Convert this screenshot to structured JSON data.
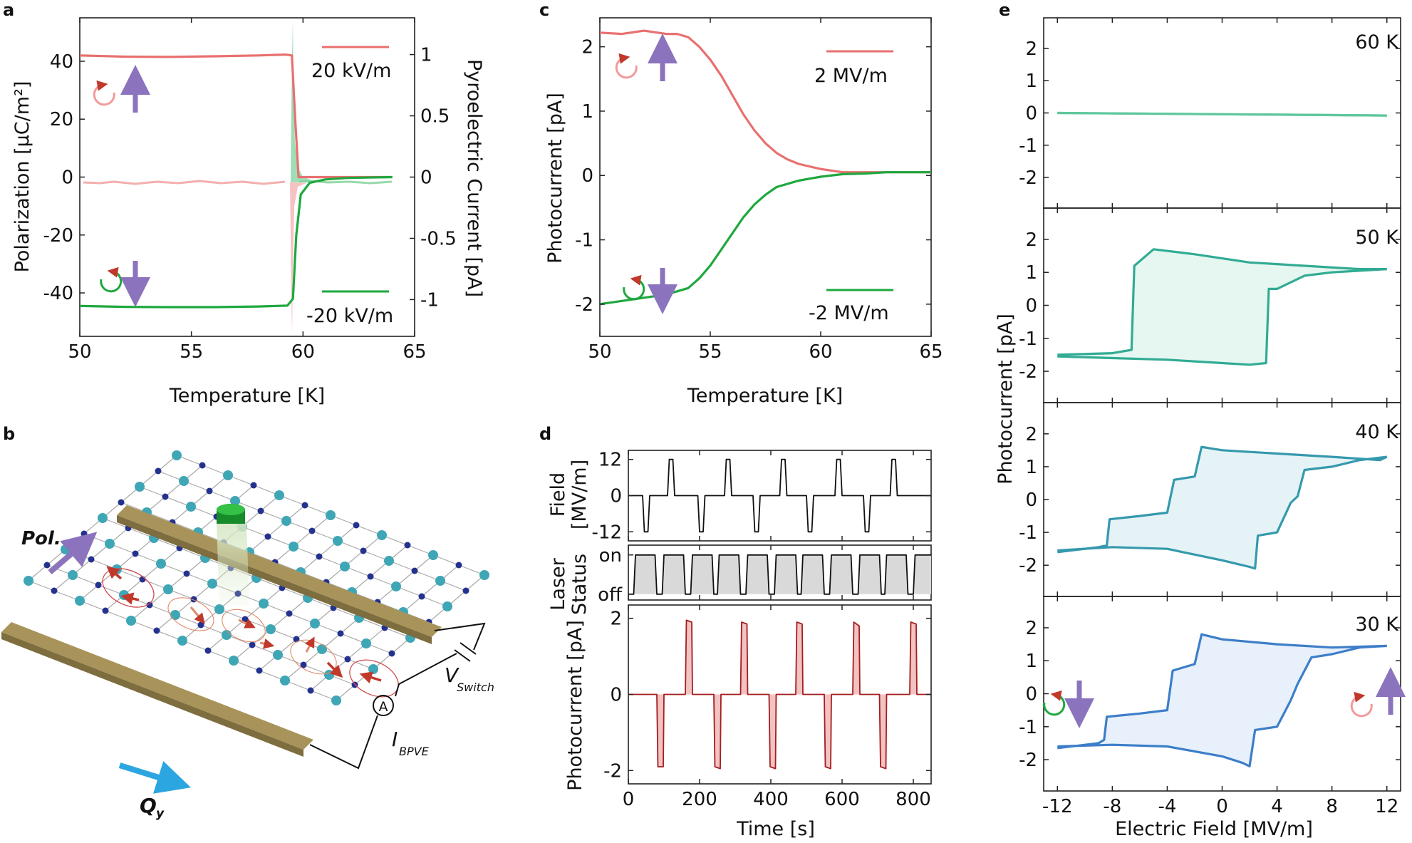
{
  "figure": {
    "panel_labels": [
      "a",
      "b",
      "c",
      "d",
      "e"
    ]
  },
  "chart_data": [
    {
      "id": "a",
      "type": "line",
      "xlabel": "Temperature [K]",
      "ylabel": "Polarization [µC/m²]",
      "ylabel_right": "Pyroelectric Current [pA]",
      "xlim": [
        50,
        65
      ],
      "ylim": [
        -55,
        55
      ],
      "ylim_right": [
        -1.3,
        1.3
      ],
      "xticks": [
        50,
        55,
        60,
        65
      ],
      "yticks": [
        -40,
        -20,
        0,
        20,
        40
      ],
      "yticks_right": [
        -1,
        -0.5,
        0,
        0.5,
        1
      ],
      "transition_temperature": 59.7,
      "series": [
        {
          "name": "20 kV/m",
          "color": "#e8706f",
          "x": [
            50,
            52,
            54,
            56,
            58,
            59.2,
            59.5,
            59.65,
            59.8,
            60.2,
            61,
            63,
            64
          ],
          "y": [
            42,
            41.6,
            41.5,
            41.7,
            42,
            42.3,
            42,
            20,
            0,
            0,
            0,
            0,
            0
          ]
        },
        {
          "name": "-20 kV/m",
          "color": "#1ea83f",
          "x": [
            50,
            52,
            54,
            56,
            58,
            59.3,
            59.55,
            59.7,
            59.9,
            60.3,
            61,
            62,
            64
          ],
          "y": [
            -44.5,
            -44.8,
            -44.9,
            -44.9,
            -44.7,
            -44.4,
            -42,
            -20,
            -6,
            -2,
            -0.8,
            -0.3,
            0
          ]
        }
      ],
      "legend": [
        "20 kV/m",
        "-20 kV/m"
      ]
    },
    {
      "id": "c",
      "type": "line",
      "xlabel": "Temperature [K]",
      "ylabel": "Photocurrent [pA]",
      "xlim": [
        50,
        65
      ],
      "ylim": [
        -2.5,
        2.45
      ],
      "xticks": [
        50,
        55,
        60,
        65
      ],
      "yticks": [
        -2,
        -1,
        0,
        1,
        2
      ],
      "series": [
        {
          "name": "2 MV/m",
          "color": "#e8706f",
          "x": [
            50,
            51,
            52,
            53,
            53.5,
            54,
            54.5,
            55,
            55.5,
            56,
            56.5,
            57,
            57.5,
            58,
            58.5,
            59,
            60,
            61,
            62,
            63,
            64,
            65
          ],
          "y": [
            2.22,
            2.2,
            2.25,
            2.2,
            2.2,
            2.15,
            2.0,
            1.8,
            1.55,
            1.25,
            0.95,
            0.7,
            0.5,
            0.35,
            0.25,
            0.18,
            0.1,
            0.05,
            0.05,
            0.05,
            0.05,
            0.05
          ]
        },
        {
          "name": "-2 MV/m",
          "color": "#1ea83f",
          "x": [
            50,
            51,
            52,
            53,
            54,
            54.5,
            55,
            55.5,
            56,
            56.5,
            57,
            57.5,
            58,
            59,
            60,
            61,
            62,
            63,
            64,
            65
          ],
          "y": [
            -2.0,
            -1.95,
            -1.9,
            -1.85,
            -1.75,
            -1.6,
            -1.4,
            -1.15,
            -0.9,
            -0.65,
            -0.45,
            -0.3,
            -0.18,
            -0.08,
            -0.02,
            0.02,
            0.03,
            0.05,
            0.05,
            0.05
          ]
        }
      ],
      "legend": [
        "2 MV/m",
        "-2 MV/m"
      ]
    },
    {
      "id": "d",
      "type": "line",
      "xlabel": "Time [s]",
      "xlim": [
        0,
        850
      ],
      "xticks": [
        0,
        200,
        400,
        600,
        800
      ],
      "subplots": [
        {
          "ylabel_lines": [
            "Field",
            "[MV/m]"
          ],
          "ylim": [
            -15,
            15
          ],
          "yticks": [
            -12,
            0,
            12
          ],
          "color": "#111111",
          "x": [
            0,
            40,
            45,
            55,
            60,
            110,
            115,
            125,
            130,
            195,
            200,
            210,
            215,
            270,
            275,
            285,
            290,
            350,
            355,
            365,
            370,
            425,
            430,
            440,
            445,
            500,
            505,
            515,
            520,
            580,
            585,
            595,
            600,
            660,
            665,
            675,
            680,
            735,
            740,
            750,
            755,
            850
          ],
          "y": [
            0,
            0,
            -12,
            -12,
            0,
            0,
            12,
            12,
            0,
            0,
            -12,
            -12,
            0,
            0,
            12,
            12,
            0,
            0,
            -12,
            -12,
            0,
            0,
            12,
            12,
            0,
            0,
            -12,
            -12,
            0,
            0,
            12,
            12,
            0,
            0,
            -12,
            -12,
            0,
            0,
            12,
            12,
            0,
            0
          ]
        },
        {
          "ylabel_lines": [
            "Laser",
            "Status"
          ],
          "ylim": [
            -0.15,
            1.25
          ],
          "ytick_labels": [
            "off",
            "on"
          ],
          "color": "#111111",
          "x": [
            0,
            15,
            20,
            75,
            80,
            95,
            100,
            155,
            160,
            175,
            180,
            235,
            240,
            250,
            255,
            310,
            315,
            330,
            335,
            390,
            395,
            410,
            415,
            470,
            475,
            485,
            490,
            545,
            550,
            565,
            570,
            625,
            630,
            645,
            650,
            705,
            710,
            720,
            725,
            780,
            785,
            800,
            805,
            850
          ],
          "y": [
            0,
            0,
            1,
            1,
            0,
            0,
            1,
            1,
            0,
            0,
            1,
            1,
            0,
            0,
            1,
            1,
            0,
            0,
            1,
            1,
            0,
            0,
            1,
            1,
            0,
            0,
            1,
            1,
            0,
            0,
            1,
            1,
            0,
            0,
            1,
            1,
            0,
            0,
            1,
            1,
            0,
            0,
            1,
            1
          ]
        },
        {
          "ylabel": "Photocurrent [pA]",
          "ylim": [
            -2.35,
            2.35
          ],
          "yticks": [
            -2,
            0,
            2
          ],
          "color": "#a51d1d",
          "x": [
            0,
            80,
            83,
            98,
            100,
            160,
            163,
            178,
            180,
            240,
            243,
            258,
            260,
            315,
            318,
            333,
            335,
            395,
            398,
            413,
            415,
            470,
            473,
            488,
            490,
            550,
            553,
            568,
            570,
            630,
            633,
            648,
            650,
            705,
            708,
            723,
            725,
            790,
            793,
            808,
            810,
            850
          ],
          "y": [
            0,
            0,
            -1.9,
            -1.9,
            0,
            0,
            1.95,
            1.9,
            0,
            0,
            -1.9,
            -1.95,
            0,
            0,
            1.9,
            1.85,
            0,
            0,
            -1.9,
            -1.95,
            0,
            0,
            1.9,
            1.85,
            0,
            0,
            -1.9,
            -1.95,
            0,
            0,
            1.9,
            1.8,
            0,
            0,
            -1.9,
            -1.95,
            0,
            0,
            1.9,
            1.85,
            0,
            0
          ]
        }
      ]
    },
    {
      "id": "e",
      "type": "line",
      "xlabel": "Electric Field [MV/m]",
      "ylabel": "Photocurrent [pA]",
      "xlim": [
        -13,
        13
      ],
      "ylim": [
        -2.95,
        2.95
      ],
      "xticks": [
        -12,
        -8,
        -4,
        0,
        4,
        8,
        12
      ],
      "yticks": [
        -2,
        -1,
        0,
        1,
        2
      ],
      "subplots": [
        {
          "label": "60 K",
          "color": "#5fc79c",
          "upper": {
            "x": [
              -12,
              12
            ],
            "y": [
              0,
              -0.08
            ]
          },
          "lower": {
            "x": [
              -12,
              12
            ],
            "y": [
              0,
              -0.08
            ]
          }
        },
        {
          "label": "50 K",
          "color": "#32ab94",
          "upper": {
            "x": [
              -12,
              -8,
              -6.6,
              -6.4,
              -5,
              -2,
              2,
              6,
              10,
              12
            ],
            "y": [
              -1.5,
              -1.45,
              -1.35,
              1.2,
              1.7,
              1.55,
              1.3,
              1.2,
              1.1,
              1.1
            ]
          },
          "lower": {
            "x": [
              -12,
              -8,
              -4,
              0,
              2,
              3.2,
              3.4,
              4,
              6,
              8,
              10,
              12
            ],
            "y": [
              -1.55,
              -1.6,
              -1.65,
              -1.75,
              -1.8,
              -1.75,
              0.5,
              0.5,
              0.9,
              1.0,
              1.05,
              1.1
            ]
          }
        },
        {
          "label": "40 K",
          "color": "#3599ad",
          "upper": {
            "x": [
              -12,
              -9,
              -8.4,
              -8.2,
              -6,
              -4,
              -3.5,
              -2,
              -1.5,
              0,
              4,
              8,
              11.5,
              12
            ],
            "y": [
              -1.6,
              -1.45,
              -1.4,
              -0.6,
              -0.5,
              -0.4,
              0.6,
              0.7,
              1.6,
              1.5,
              1.4,
              1.3,
              1.2,
              1.3
            ]
          },
          "lower": {
            "x": [
              -12,
              -8,
              -4,
              0,
              1,
              2,
              2.4,
              2.6,
              4,
              5,
              5.5,
              6,
              8,
              10,
              12
            ],
            "y": [
              -1.55,
              -1.45,
              -1.5,
              -1.85,
              -1.95,
              -2.05,
              -2.1,
              -1.1,
              -1.0,
              -0.1,
              0.1,
              0.9,
              1.0,
              1.2,
              1.3
            ]
          }
        },
        {
          "label": "30 K",
          "color": "#3d7ec9",
          "upper": {
            "x": [
              -12,
              -9,
              -8.6,
              -8.4,
              -6,
              -4,
              -3.6,
              -2,
              -1.5,
              0,
              4,
              8,
              12
            ],
            "y": [
              -1.65,
              -1.5,
              -1.4,
              -0.7,
              -0.6,
              -0.5,
              0.7,
              0.9,
              1.8,
              1.65,
              1.5,
              1.4,
              1.45
            ]
          },
          "lower": {
            "x": [
              -12,
              -8,
              -4,
              0,
              1.5,
              2.0,
              2.4,
              4,
              5,
              5.5,
              6.5,
              8,
              10,
              12
            ],
            "y": [
              -1.6,
              -1.55,
              -1.6,
              -1.9,
              -2.1,
              -2.2,
              -1.1,
              -1.0,
              -0.2,
              0.3,
              1.1,
              1.2,
              1.4,
              1.45
            ]
          }
        }
      ]
    }
  ],
  "schematic": {
    "label_pol": "Pol.",
    "label_q": "Q",
    "label_q_sub": "y",
    "label_v": "V",
    "label_v_sub": "Switch",
    "label_i": "I",
    "label_i_sub": "BPVE",
    "ammeter": "A"
  },
  "colors": {
    "red": "#e8706f",
    "green": "#1ea83f",
    "purple": "#8b73bd",
    "gold": "#a8945a",
    "atom": "#3fa6b6",
    "atom_dark": "#23318f",
    "blue_arrow": "#2ca6e0"
  }
}
